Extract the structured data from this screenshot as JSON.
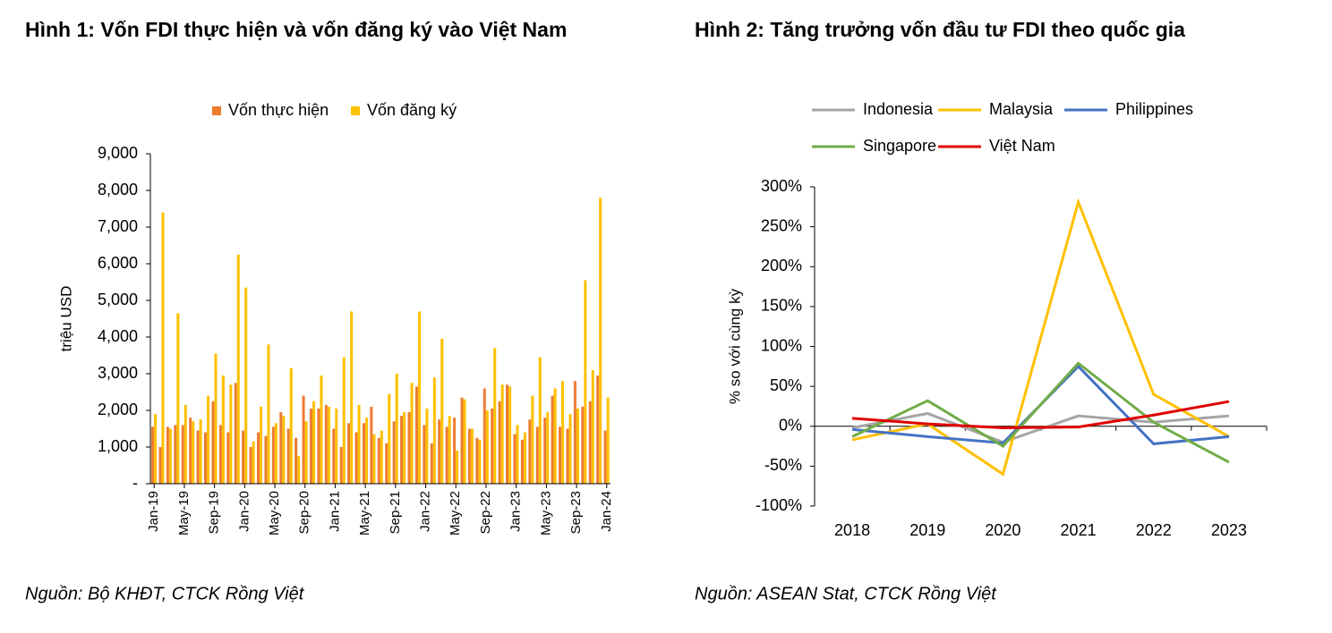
{
  "chart_data": [
    {
      "type": "bar",
      "title": "Hình 1: Vốn FDI thực hiện và vốn đăng ký vào Việt Nam",
      "source": "Nguồn: Bộ KHĐT, CTCK Rồng Việt",
      "ylabel": "triệu USD",
      "categories": [
        "Jan-19",
        null,
        null,
        null,
        "May-19",
        null,
        null,
        null,
        "Sep-19",
        null,
        null,
        null,
        "Jan-20",
        null,
        null,
        null,
        "May-20",
        null,
        null,
        null,
        "Sep-20",
        null,
        null,
        null,
        "Jan-21",
        null,
        null,
        null,
        "May-21",
        null,
        null,
        null,
        "Sep-21",
        null,
        null,
        null,
        "Jan-22",
        null,
        null,
        null,
        "May-22",
        null,
        null,
        null,
        "Sep-22",
        null,
        null,
        null,
        "Jan-23",
        null,
        null,
        null,
        "May-23",
        null,
        null,
        null,
        "Sep-23",
        null,
        null,
        null,
        "Jan-24"
      ],
      "series": [
        {
          "name": "Vốn thực hiện",
          "color": "#ed7d31",
          "values": [
            1550,
            1000,
            1550,
            1600,
            1600,
            1800,
            1450,
            1400,
            2250,
            1600,
            1400,
            2750,
            1450,
            1000,
            1400,
            1300,
            1550,
            1950,
            1500,
            1250,
            2400,
            2050,
            2050,
            2150,
            1500,
            1000,
            1650,
            1400,
            1650,
            2100,
            1250,
            1100,
            1700,
            1850,
            1950,
            2650,
            1600,
            1100,
            1750,
            1550,
            1800,
            2350,
            1500,
            1250,
            2600,
            2050,
            2250,
            2700,
            1350,
            1200,
            1750,
            1550,
            1800,
            2400,
            1550,
            1500,
            2800,
            2100,
            2250,
            2950,
            1450
          ]
        },
        {
          "name": "Vốn đăng ký",
          "color": "#ffc000",
          "values": [
            1900,
            7400,
            1500,
            4650,
            2150,
            1700,
            1750,
            2400,
            3550,
            2950,
            2700,
            6250,
            5350,
            1150,
            2100,
            3800,
            1650,
            1850,
            3150,
            750,
            1700,
            2250,
            2950,
            2100,
            2050,
            3450,
            4700,
            2150,
            1800,
            1350,
            1450,
            2450,
            3000,
            1950,
            2750,
            4700,
            2050,
            2900,
            3950,
            1850,
            900,
            2300,
            1500,
            1200,
            2000,
            3700,
            2700,
            2650,
            1600,
            1400,
            2400,
            3450,
            1950,
            2600,
            2800,
            1900,
            2050,
            5550,
            3100,
            7800,
            2350
          ]
        }
      ],
      "ylim": [
        0,
        9000
      ],
      "yticks": [
        {
          "value": 0,
          "label": "-"
        },
        {
          "value": 1000,
          "label": "1,000"
        },
        {
          "value": 2000,
          "label": "2,000"
        },
        {
          "value": 3000,
          "label": "3,000"
        },
        {
          "value": 4000,
          "label": "4,000"
        },
        {
          "value": 5000,
          "label": "5,000"
        },
        {
          "value": 6000,
          "label": "6,000"
        },
        {
          "value": 7000,
          "label": "7,000"
        },
        {
          "value": 8000,
          "label": "8,000"
        },
        {
          "value": 9000,
          "label": "9,000"
        }
      ],
      "legend": "top"
    },
    {
      "type": "line",
      "title": "Hình 2: Tăng trưởng vốn đầu tư FDI theo quốc gia",
      "source": "Nguồn: ASEAN Stat, CTCK Rồng Việt",
      "ylabel": "% so với cùng kỳ",
      "categories": [
        "2018",
        "2019",
        "2020",
        "2021",
        "2022",
        "2023"
      ],
      "series": [
        {
          "name": "Indonesia",
          "color": "#a5a5a5",
          "values": [
            -2,
            16,
            -20,
            13,
            5,
            13
          ]
        },
        {
          "name": "Malaysia",
          "color": "#ffc000",
          "values": [
            -17,
            3,
            -60,
            281,
            40,
            -13
          ]
        },
        {
          "name": "Philippines",
          "color": "#4472c4",
          "values": [
            -4,
            -13,
            -21,
            75,
            -22,
            -13
          ]
        },
        {
          "name": "Singapore",
          "color": "#70ad47",
          "values": [
            -13,
            32,
            -25,
            79,
            5,
            -45
          ]
        },
        {
          "name": "Việt Nam",
          "color": "#e00000",
          "values": [
            10,
            3,
            -2,
            -1,
            14,
            31
          ]
        }
      ],
      "ylim": [
        -100,
        300
      ],
      "yticks": [
        {
          "value": -100,
          "label": "-100%"
        },
        {
          "value": -50,
          "label": "-50%"
        },
        {
          "value": 0,
          "label": "0%"
        },
        {
          "value": 50,
          "label": "50%"
        },
        {
          "value": 100,
          "label": "100%"
        },
        {
          "value": 150,
          "label": "150%"
        },
        {
          "value": 200,
          "label": "200%"
        },
        {
          "value": 250,
          "label": "250%"
        },
        {
          "value": 300,
          "label": "300%"
        }
      ],
      "legend": "top"
    }
  ]
}
